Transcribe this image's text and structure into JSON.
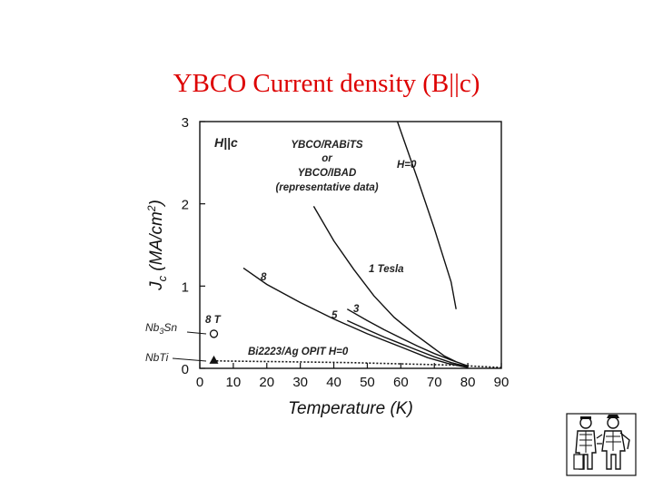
{
  "slide": {
    "title": "YBCO Current density (B||c)"
  },
  "colors": {
    "title": "#dd0000",
    "ink": "#111111"
  },
  "logo": {
    "icon": "two-figures-logo-icon"
  },
  "chart_data": {
    "type": "line",
    "title": "",
    "xlabel": "Temperature (K)",
    "ylabel_main": "J",
    "ylabel_sub": "c",
    "ylabel_rest": " (MA/cm",
    "ylabel_sup": "2",
    "ylabel_end": ")",
    "xlim": [
      0,
      90
    ],
    "ylim": [
      0,
      3
    ],
    "xticks": [
      0,
      10,
      20,
      30,
      40,
      50,
      60,
      70,
      80,
      90
    ],
    "yticks": [
      0,
      1,
      2,
      3
    ],
    "grid": false,
    "series": [
      {
        "name": "H=0",
        "x": [
          59,
          65,
          70,
          75,
          76.5
        ],
        "y": [
          3.0,
          2.3,
          1.7,
          1.05,
          0.72
        ]
      },
      {
        "name": "1 Tesla",
        "x": [
          34,
          40,
          46,
          52,
          58,
          64,
          69,
          73,
          76.5
        ],
        "y": [
          1.97,
          1.55,
          1.2,
          0.88,
          0.62,
          0.42,
          0.27,
          0.15,
          0.08
        ]
      },
      {
        "name": "8",
        "x": [
          13,
          20,
          30,
          40,
          50,
          60,
          68,
          74,
          80
        ],
        "y": [
          1.22,
          1.02,
          0.8,
          0.6,
          0.42,
          0.26,
          0.13,
          0.06,
          0.01
        ]
      },
      {
        "name": "5",
        "x": [
          44,
          50,
          55,
          60,
          65,
          70,
          75,
          80
        ],
        "y": [
          0.58,
          0.47,
          0.38,
          0.3,
          0.22,
          0.14,
          0.07,
          0.02
        ]
      },
      {
        "name": "3",
        "x": [
          44,
          50,
          55,
          60,
          65,
          70,
          75,
          80
        ],
        "y": [
          0.72,
          0.58,
          0.47,
          0.37,
          0.27,
          0.18,
          0.1,
          0.03
        ]
      },
      {
        "name": "Bi2223/Ag OPIT H=0",
        "x": [
          5,
          15,
          25,
          35,
          45,
          55,
          65,
          75,
          85,
          90
        ],
        "y": [
          0.09,
          0.085,
          0.08,
          0.075,
          0.07,
          0.06,
          0.05,
          0.04,
          0.02,
          0.01
        ],
        "dashed": true
      }
    ],
    "markers": [
      {
        "name": "Nb3Sn point",
        "x": 4.2,
        "y": 0.42,
        "shape": "circle"
      },
      {
        "name": "NbTi point",
        "x": 4.2,
        "y": 0.1,
        "shape": "triangle"
      }
    ],
    "annotations": {
      "field_orientation": "H||c",
      "ybco_line1": "YBCO/RABiTS",
      "ybco_line2": "or",
      "ybco_line3": "YBCO/IBAD",
      "ybco_line4": "(representative data)",
      "label_h0": "H=0",
      "label_1t": "1 Tesla",
      "label_8": "8",
      "label_5": "5",
      "label_3": "3",
      "label_8t": "8 T",
      "label_bi": "Bi2223/Ag OPIT H=0",
      "label_nb3sn_main": "Nb",
      "label_nb3sn_sub": "3",
      "label_nb3sn_end": "Sn",
      "label_nbti": "NbTi"
    }
  }
}
